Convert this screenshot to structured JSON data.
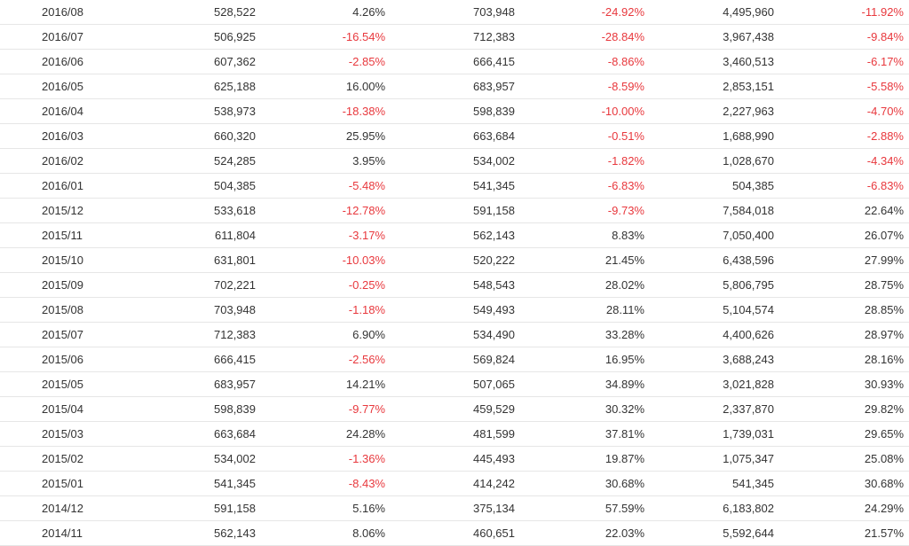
{
  "colors": {
    "text": "#333333",
    "negative": "#e8383d",
    "row_border": "#e6e6e6"
  },
  "rows": [
    [
      "2016/08",
      "528,522",
      "4.26%",
      "703,948",
      "-24.92%",
      "4,495,960",
      "-11.92%"
    ],
    [
      "2016/07",
      "506,925",
      "-16.54%",
      "712,383",
      "-28.84%",
      "3,967,438",
      "-9.84%"
    ],
    [
      "2016/06",
      "607,362",
      "-2.85%",
      "666,415",
      "-8.86%",
      "3,460,513",
      "-6.17%"
    ],
    [
      "2016/05",
      "625,188",
      "16.00%",
      "683,957",
      "-8.59%",
      "2,853,151",
      "-5.58%"
    ],
    [
      "2016/04",
      "538,973",
      "-18.38%",
      "598,839",
      "-10.00%",
      "2,227,963",
      "-4.70%"
    ],
    [
      "2016/03",
      "660,320",
      "25.95%",
      "663,684",
      "-0.51%",
      "1,688,990",
      "-2.88%"
    ],
    [
      "2016/02",
      "524,285",
      "3.95%",
      "534,002",
      "-1.82%",
      "1,028,670",
      "-4.34%"
    ],
    [
      "2016/01",
      "504,385",
      "-5.48%",
      "541,345",
      "-6.83%",
      "504,385",
      "-6.83%"
    ],
    [
      "2015/12",
      "533,618",
      "-12.78%",
      "591,158",
      "-9.73%",
      "7,584,018",
      "22.64%"
    ],
    [
      "2015/11",
      "611,804",
      "-3.17%",
      "562,143",
      "8.83%",
      "7,050,400",
      "26.07%"
    ],
    [
      "2015/10",
      "631,801",
      "-10.03%",
      "520,222",
      "21.45%",
      "6,438,596",
      "27.99%"
    ],
    [
      "2015/09",
      "702,221",
      "-0.25%",
      "548,543",
      "28.02%",
      "5,806,795",
      "28.75%"
    ],
    [
      "2015/08",
      "703,948",
      "-1.18%",
      "549,493",
      "28.11%",
      "5,104,574",
      "28.85%"
    ],
    [
      "2015/07",
      "712,383",
      "6.90%",
      "534,490",
      "33.28%",
      "4,400,626",
      "28.97%"
    ],
    [
      "2015/06",
      "666,415",
      "-2.56%",
      "569,824",
      "16.95%",
      "3,688,243",
      "28.16%"
    ],
    [
      "2015/05",
      "683,957",
      "14.21%",
      "507,065",
      "34.89%",
      "3,021,828",
      "30.93%"
    ],
    [
      "2015/04",
      "598,839",
      "-9.77%",
      "459,529",
      "30.32%",
      "2,337,870",
      "29.82%"
    ],
    [
      "2015/03",
      "663,684",
      "24.28%",
      "481,599",
      "37.81%",
      "1,739,031",
      "29.65%"
    ],
    [
      "2015/02",
      "534,002",
      "-1.36%",
      "445,493",
      "19.87%",
      "1,075,347",
      "25.08%"
    ],
    [
      "2015/01",
      "541,345",
      "-8.43%",
      "414,242",
      "30.68%",
      "541,345",
      "30.68%"
    ],
    [
      "2014/12",
      "591,158",
      "5.16%",
      "375,134",
      "57.59%",
      "6,183,802",
      "24.29%"
    ],
    [
      "2014/11",
      "562,143",
      "8.06%",
      "460,651",
      "22.03%",
      "5,592,644",
      "21.57%"
    ]
  ]
}
